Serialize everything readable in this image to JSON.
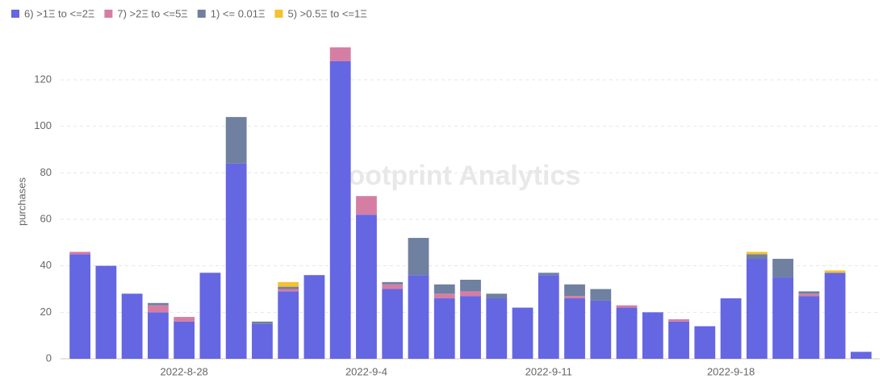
{
  "chart_data": {
    "type": "stacked-bar",
    "y_label": "purchases",
    "watermark": "Footprint Analytics",
    "categories": [
      null,
      null,
      null,
      null,
      "2022-8-28",
      null,
      null,
      null,
      null,
      null,
      null,
      "2022-9-4",
      null,
      null,
      null,
      null,
      null,
      null,
      "2022-9-11",
      null,
      null,
      null,
      null,
      null,
      null,
      "2022-9-18",
      null,
      null,
      null,
      null,
      null
    ],
    "series": [
      {
        "name": "6) >1Ξ to <=2Ξ",
        "color": "#6566e2",
        "values": [
          45,
          40,
          28,
          20,
          16,
          37,
          84,
          15,
          29,
          36,
          128,
          62,
          30,
          36,
          26,
          27,
          26,
          22,
          36,
          26,
          25,
          22,
          20,
          16,
          14,
          26,
          43,
          35,
          27,
          37,
          3
        ]
      },
      {
        "name": "7) >2Ξ to <=5Ξ",
        "color": "#d57ea3",
        "values": [
          1,
          0,
          0,
          3,
          2,
          0,
          0,
          0,
          1,
          0,
          6,
          8,
          2,
          0,
          2,
          2,
          0,
          0,
          0,
          1,
          0,
          1,
          0,
          1,
          0,
          0,
          0,
          0,
          1,
          0,
          0
        ]
      },
      {
        "name": "1) <= 0.01Ξ",
        "color": "#6f80a0",
        "values": [
          0,
          0,
          0,
          1,
          0,
          0,
          20,
          1,
          1,
          0,
          0,
          0,
          1,
          16,
          4,
          5,
          2,
          0,
          1,
          5,
          5,
          0,
          0,
          0,
          0,
          0,
          2,
          8,
          1,
          0,
          0
        ]
      },
      {
        "name": "5) >0.5Ξ to <=1Ξ",
        "color": "#f5c130",
        "values": [
          0,
          0,
          0,
          0,
          0,
          0,
          0,
          0,
          2,
          0,
          0,
          0,
          0,
          0,
          0,
          0,
          0,
          0,
          0,
          0,
          0,
          0,
          0,
          0,
          0,
          0,
          1,
          0,
          0,
          1,
          0
        ]
      }
    ],
    "ylim": [
      0,
      137
    ],
    "yticks": [
      0,
      20,
      40,
      60,
      80,
      100,
      120
    ],
    "grid": true
  }
}
